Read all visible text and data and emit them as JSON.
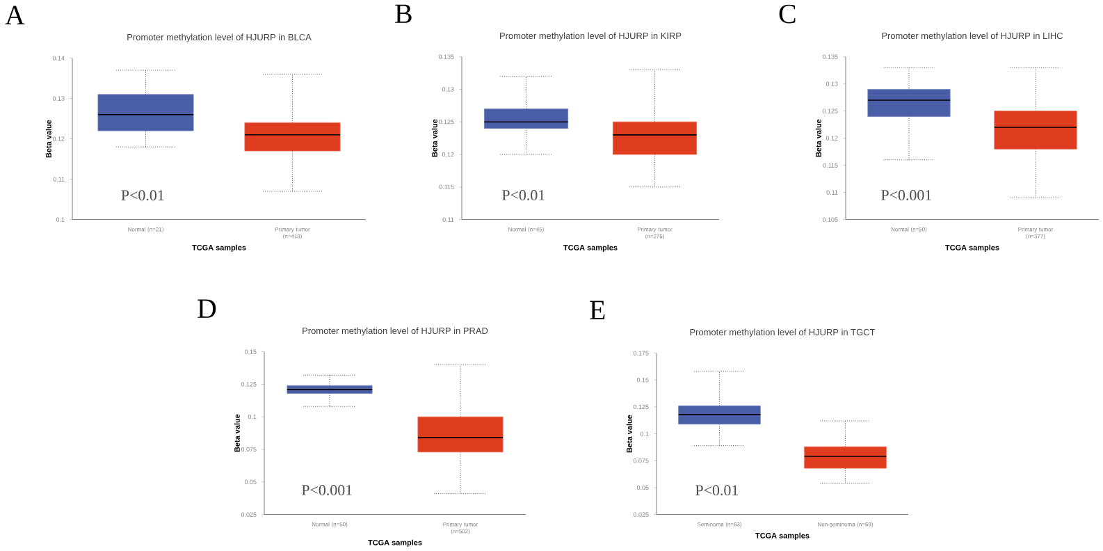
{
  "chart_data": [
    {
      "type": "box",
      "title": "Promoter methylation level of HJURP in BLCA",
      "xlabel": "TCGA samples",
      "ylabel": "Beta value",
      "categories": [
        "Normal (n=21)",
        "Primary tumor (n=418)"
      ],
      "colors": [
        "#4a5ea8",
        "#e03c1f"
      ],
      "boxes": [
        {
          "low": 0.118,
          "q1": 0.122,
          "median": 0.126,
          "q3": 0.131,
          "high": 0.137
        },
        {
          "low": 0.107,
          "q1": 0.117,
          "median": 0.121,
          "q3": 0.124,
          "high": 0.136
        }
      ],
      "ylim": [
        0.1,
        0.14
      ],
      "yticks": [
        0.1,
        0.11,
        0.12,
        0.13,
        0.14
      ],
      "annotations": [
        "A",
        "P<0.01"
      ]
    },
    {
      "type": "box",
      "title": "Promoter methylation level of HJURP in KIRP",
      "xlabel": "TCGA samples",
      "ylabel": "Beta value",
      "categories": [
        "Normal (n=45)",
        "Primary tumor (n=275)"
      ],
      "colors": [
        "#4a5ea8",
        "#e03c1f"
      ],
      "boxes": [
        {
          "low": 0.12,
          "q1": 0.124,
          "median": 0.125,
          "q3": 0.127,
          "high": 0.132
        },
        {
          "low": 0.115,
          "q1": 0.12,
          "median": 0.123,
          "q3": 0.125,
          "high": 0.133
        }
      ],
      "ylim": [
        0.11,
        0.135
      ],
      "yticks": [
        0.11,
        0.115,
        0.12,
        0.125,
        0.13,
        0.135
      ],
      "annotations": [
        "B",
        "P<0.01"
      ]
    },
    {
      "type": "box",
      "title": "Promoter methylation level of HJURP in LIHC",
      "xlabel": "TCGA samples",
      "ylabel": "Beta value",
      "categories": [
        "Normal (n=50)",
        "Primary tumor (n=377)"
      ],
      "colors": [
        "#4a5ea8",
        "#e03c1f"
      ],
      "boxes": [
        {
          "low": 0.116,
          "q1": 0.124,
          "median": 0.127,
          "q3": 0.129,
          "high": 0.133
        },
        {
          "low": 0.109,
          "q1": 0.118,
          "median": 0.122,
          "q3": 0.125,
          "high": 0.133
        }
      ],
      "ylim": [
        0.105,
        0.135
      ],
      "yticks": [
        0.105,
        0.11,
        0.115,
        0.12,
        0.125,
        0.13,
        0.135
      ],
      "annotations": [
        "C",
        "P<0.001"
      ]
    },
    {
      "type": "box",
      "title": "Promoter methylation level of HJURP in PRAD",
      "xlabel": "TCGA samples",
      "ylabel": "Beta value",
      "categories": [
        "Normal (n=50)",
        "Primary tumor (n=502)"
      ],
      "colors": [
        "#4a5ea8",
        "#e03c1f"
      ],
      "boxes": [
        {
          "low": 0.108,
          "q1": 0.118,
          "median": 0.121,
          "q3": 0.124,
          "high": 0.132
        },
        {
          "low": 0.041,
          "q1": 0.073,
          "median": 0.084,
          "q3": 0.1,
          "high": 0.14
        }
      ],
      "ylim": [
        0.025,
        0.15
      ],
      "yticks": [
        0.025,
        0.05,
        0.075,
        0.1,
        0.125,
        0.15
      ],
      "annotations": [
        "D",
        "P<0.001"
      ]
    },
    {
      "type": "box",
      "title": "Promoter methylation level of HJURP in TGCT",
      "xlabel": "TCGA samples",
      "ylabel": "Beta value",
      "categories": [
        "Seminoma (n=63)",
        "Non-seminoma (n=69)"
      ],
      "colors": [
        "#4a5ea8",
        "#e03c1f"
      ],
      "boxes": [
        {
          "low": 0.089,
          "q1": 0.109,
          "median": 0.118,
          "q3": 0.126,
          "high": 0.158
        },
        {
          "low": 0.054,
          "q1": 0.068,
          "median": 0.079,
          "q3": 0.088,
          "high": 0.112
        }
      ],
      "ylim": [
        0.025,
        0.175
      ],
      "yticks": [
        0.025,
        0.05,
        0.075,
        0.1,
        0.125,
        0.15,
        0.175
      ],
      "annotations": [
        "E",
        "P<0.01"
      ]
    }
  ]
}
